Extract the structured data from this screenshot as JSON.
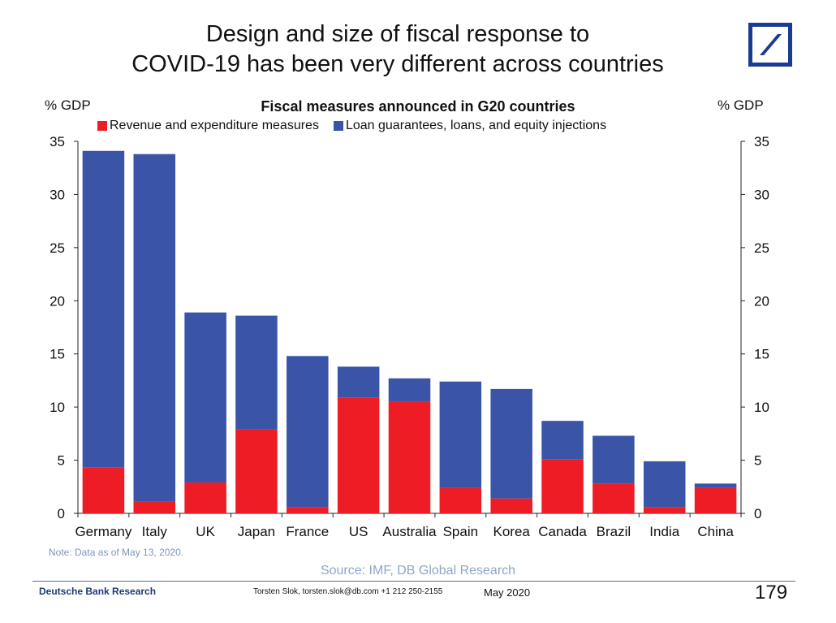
{
  "slide": {
    "title_line1": "Design and size of fiscal response to",
    "title_line2": "COVID-19 has been very different across countries",
    "note": "Note: Data as of May 13, 2020.",
    "source": "Source: IMF, DB Global Research",
    "footer_left": "Deutsche Bank Research",
    "footer_contact": "Torsten Slok, torsten.slok@db.com  +1 212 250-2155",
    "footer_date": "May 2020",
    "page_number": "179",
    "logo_color": "#1a3a94"
  },
  "chart_data": {
    "type": "bar",
    "stacked": true,
    "title": "Fiscal measures announced in G20 countries",
    "ylabel_left": "% GDP",
    "ylabel_right": "% GDP",
    "ylim": [
      0,
      35
    ],
    "yticks": [
      0,
      5,
      10,
      15,
      20,
      25,
      30,
      35
    ],
    "grid": false,
    "legend_position": "top",
    "categories": [
      "Germany",
      "Italy",
      "UK",
      "Japan",
      "France",
      "US",
      "Australia",
      "Spain",
      "Korea",
      "Canada",
      "Brazil",
      "India",
      "China"
    ],
    "series": [
      {
        "name": "Revenue and expenditure measures",
        "color": "#ee1c25",
        "values": [
          4.3,
          1.1,
          2.9,
          7.9,
          0.6,
          10.9,
          10.5,
          2.4,
          1.4,
          5.1,
          2.8,
          0.6,
          2.4
        ]
      },
      {
        "name": "Loan guarantees, loans, and equity injections",
        "color": "#3a55a8",
        "values": [
          29.8,
          32.7,
          16.0,
          10.7,
          14.2,
          2.9,
          2.2,
          10.0,
          10.3,
          3.6,
          4.5,
          4.3,
          0.4
        ]
      }
    ]
  }
}
